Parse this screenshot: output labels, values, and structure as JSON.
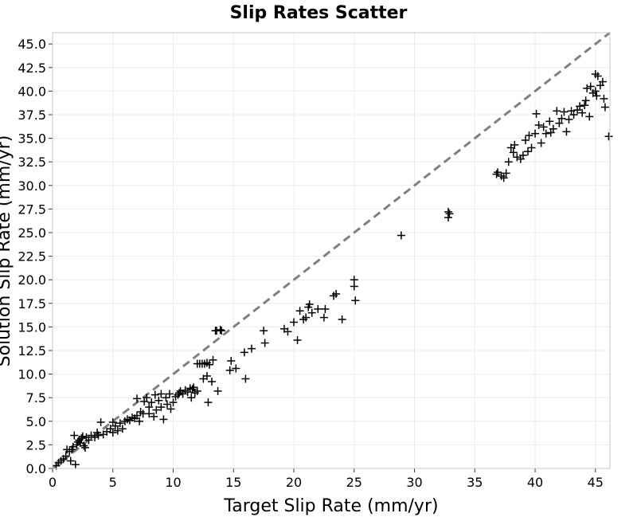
{
  "chart_data": {
    "type": "scatter",
    "title": "Slip Rates Scatter",
    "xlabel": "Target Slip Rate (mm/yr)",
    "ylabel": "Solution Slip Rate (mm/yr)",
    "xlim": [
      0,
      46.2
    ],
    "ylim": [
      0,
      46.2
    ],
    "x_ticks": [
      0,
      5,
      10,
      15,
      20,
      25,
      30,
      35,
      40,
      45
    ],
    "y_ticks": [
      0.0,
      2.5,
      5.0,
      7.5,
      10.0,
      12.5,
      15.0,
      17.5,
      20.0,
      22.5,
      25.0,
      27.5,
      30.0,
      32.5,
      35.0,
      37.5,
      40.0,
      42.5,
      45.0
    ],
    "x_tick_labels": [
      "0",
      "5",
      "10",
      "15",
      "20",
      "25",
      "30",
      "35",
      "40",
      "45"
    ],
    "y_tick_labels": [
      "0.0",
      "2.5",
      "5.0",
      "7.5",
      "10.0",
      "12.5",
      "15.0",
      "17.5",
      "20.0",
      "22.5",
      "25.0",
      "27.5",
      "30.0",
      "32.5",
      "35.0",
      "37.5",
      "40.0",
      "42.5",
      "45.0"
    ],
    "grid": true,
    "marker": "+",
    "reference_line": {
      "style": "dashed",
      "color": "#808080",
      "points": [
        [
          0,
          0
        ],
        [
          46.2,
          46.2
        ]
      ]
    },
    "series": [
      {
        "marker_color": "#000000",
        "points": [
          [
            0.3,
            0.3
          ],
          [
            0.5,
            0.6
          ],
          [
            0.7,
            0.8
          ],
          [
            0.9,
            1.0
          ],
          [
            1.1,
            1.3
          ],
          [
            1.2,
            2.0
          ],
          [
            1.4,
            1.8
          ],
          [
            1.5,
            0.8
          ],
          [
            1.6,
            2.0
          ],
          [
            1.7,
            2.3
          ],
          [
            1.8,
            3.5
          ],
          [
            1.9,
            0.4
          ],
          [
            2.0,
            2.5
          ],
          [
            2.1,
            2.8
          ],
          [
            2.2,
            3.0
          ],
          [
            2.3,
            2.7
          ],
          [
            2.4,
            3.2
          ],
          [
            2.5,
            3.4
          ],
          [
            2.6,
            2.4
          ],
          [
            2.7,
            2.2
          ],
          [
            2.8,
            3.3
          ],
          [
            3.0,
            3.0
          ],
          [
            3.2,
            3.5
          ],
          [
            3.5,
            3.3
          ],
          [
            3.7,
            3.8
          ],
          [
            3.8,
            3.5
          ],
          [
            4.0,
            4.9
          ],
          [
            4.2,
            3.6
          ],
          [
            4.5,
            3.9
          ],
          [
            4.8,
            4.2
          ],
          [
            5.0,
            4.9
          ],
          [
            5.0,
            3.8
          ],
          [
            5.2,
            4.5
          ],
          [
            5.4,
            4.0
          ],
          [
            5.6,
            4.8
          ],
          [
            5.8,
            4.2
          ],
          [
            6.0,
            5.0
          ],
          [
            6.2,
            5.2
          ],
          [
            6.4,
            5.1
          ],
          [
            6.6,
            5.4
          ],
          [
            6.8,
            5.3
          ],
          [
            7.0,
            5.6
          ],
          [
            7.0,
            7.4
          ],
          [
            7.2,
            5.0
          ],
          [
            7.3,
            6.0
          ],
          [
            7.5,
            5.8
          ],
          [
            7.6,
            7.1
          ],
          [
            7.8,
            7.5
          ],
          [
            8.0,
            5.8
          ],
          [
            8.0,
            6.5
          ],
          [
            8.2,
            7.0
          ],
          [
            8.4,
            5.5
          ],
          [
            8.5,
            7.8
          ],
          [
            8.6,
            6.2
          ],
          [
            8.8,
            7.2
          ],
          [
            9.0,
            6.5
          ],
          [
            9.0,
            7.9
          ],
          [
            9.2,
            5.2
          ],
          [
            9.4,
            7.5
          ],
          [
            9.5,
            6.8
          ],
          [
            9.7,
            7.9
          ],
          [
            9.8,
            6.3
          ],
          [
            10.0,
            7.0
          ],
          [
            10.2,
            7.6
          ],
          [
            10.4,
            7.8
          ],
          [
            10.5,
            8.0
          ],
          [
            10.6,
            8.2
          ],
          [
            10.8,
            7.9
          ],
          [
            11.0,
            8.3
          ],
          [
            11.2,
            8.1
          ],
          [
            11.4,
            8.5
          ],
          [
            11.5,
            7.5
          ],
          [
            11.6,
            8.4
          ],
          [
            11.7,
            8.6
          ],
          [
            11.8,
            8.0
          ],
          [
            12.0,
            8.2
          ],
          [
            12.0,
            11.1
          ],
          [
            12.2,
            11.1
          ],
          [
            12.4,
            11.1
          ],
          [
            12.5,
            9.5
          ],
          [
            12.6,
            11.1
          ],
          [
            12.8,
            9.8
          ],
          [
            12.8,
            11.2
          ],
          [
            12.9,
            7.0
          ],
          [
            13.0,
            11.0
          ],
          [
            13.2,
            9.2
          ],
          [
            13.3,
            11.5
          ],
          [
            13.5,
            14.6
          ],
          [
            13.6,
            14.6
          ],
          [
            13.7,
            8.2
          ],
          [
            13.9,
            14.7
          ],
          [
            14.0,
            14.6
          ],
          [
            14.7,
            10.4
          ],
          [
            14.8,
            11.4
          ],
          [
            15.2,
            10.6
          ],
          [
            15.9,
            12.3
          ],
          [
            16.0,
            9.5
          ],
          [
            16.5,
            12.7
          ],
          [
            17.5,
            14.6
          ],
          [
            17.6,
            13.3
          ],
          [
            19.2,
            14.8
          ],
          [
            19.5,
            14.5
          ],
          [
            20.0,
            15.5
          ],
          [
            20.3,
            13.6
          ],
          [
            20.5,
            16.7
          ],
          [
            20.8,
            15.8
          ],
          [
            21.0,
            16.0
          ],
          [
            21.2,
            17.1
          ],
          [
            21.3,
            17.4
          ],
          [
            21.5,
            16.5
          ],
          [
            22.0,
            16.9
          ],
          [
            22.5,
            16.0
          ],
          [
            22.6,
            16.9
          ],
          [
            23.3,
            18.3
          ],
          [
            23.5,
            18.5
          ],
          [
            24.0,
            15.8
          ],
          [
            25.0,
            20.0
          ],
          [
            25.0,
            19.3
          ],
          [
            25.1,
            17.8
          ],
          [
            28.9,
            24.7
          ],
          [
            32.8,
            27.2
          ],
          [
            32.8,
            26.6
          ],
          [
            32.9,
            27.0
          ],
          [
            36.8,
            31.2
          ],
          [
            36.9,
            31.4
          ],
          [
            37.2,
            31.0
          ],
          [
            37.4,
            30.8
          ],
          [
            37.6,
            31.3
          ],
          [
            37.8,
            32.5
          ],
          [
            38.0,
            34.0
          ],
          [
            38.2,
            33.5
          ],
          [
            38.3,
            34.3
          ],
          [
            38.5,
            33.0
          ],
          [
            38.8,
            32.8
          ],
          [
            39.0,
            33.2
          ],
          [
            39.2,
            34.8
          ],
          [
            39.4,
            33.6
          ],
          [
            39.5,
            35.3
          ],
          [
            39.7,
            34.0
          ],
          [
            40.0,
            35.5
          ],
          [
            40.1,
            37.6
          ],
          [
            40.3,
            36.4
          ],
          [
            40.5,
            34.5
          ],
          [
            40.7,
            36.2
          ],
          [
            40.9,
            35.5
          ],
          [
            41.2,
            36.8
          ],
          [
            41.3,
            35.6
          ],
          [
            41.5,
            36.0
          ],
          [
            41.8,
            37.9
          ],
          [
            42.0,
            36.6
          ],
          [
            42.2,
            37.1
          ],
          [
            42.4,
            37.8
          ],
          [
            42.6,
            35.7
          ],
          [
            42.8,
            37.0
          ],
          [
            43.0,
            37.9
          ],
          [
            43.2,
            37.5
          ],
          [
            43.5,
            38.0
          ],
          [
            43.7,
            38.4
          ],
          [
            43.9,
            37.7
          ],
          [
            44.1,
            38.5
          ],
          [
            44.2,
            39.0
          ],
          [
            44.3,
            40.3
          ],
          [
            44.5,
            37.3
          ],
          [
            44.6,
            40.5
          ],
          [
            44.8,
            39.8
          ],
          [
            45.0,
            41.8
          ],
          [
            45.0,
            40.0
          ],
          [
            45.1,
            39.5
          ],
          [
            45.2,
            41.6
          ],
          [
            45.4,
            40.6
          ],
          [
            45.6,
            41.0
          ],
          [
            45.7,
            39.2
          ],
          [
            45.8,
            38.3
          ],
          [
            46.1,
            35.2
          ]
        ]
      }
    ]
  }
}
